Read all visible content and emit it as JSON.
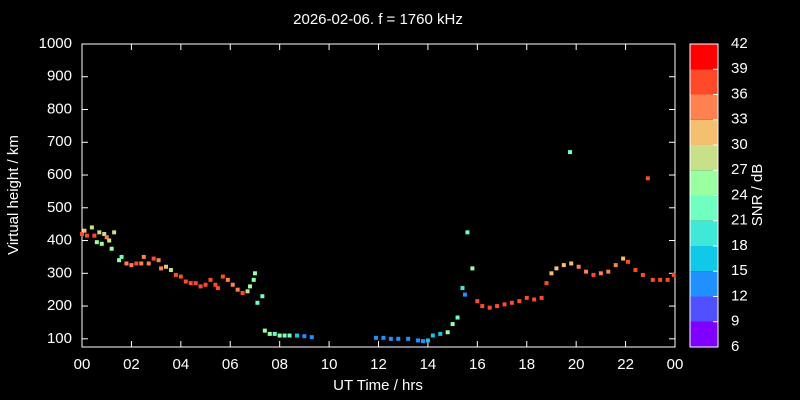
{
  "chart_data": {
    "type": "scatter",
    "title": "2026-02-06. f = 1760 kHz",
    "x_label": "UT Time / hrs",
    "y_label": "Virtual height / km",
    "xlim": [
      0,
      24
    ],
    "ylim": [
      75,
      1000
    ],
    "xticks": [
      {
        "value": 0,
        "label": "00"
      },
      {
        "value": 2,
        "label": "02"
      },
      {
        "value": 4,
        "label": "04"
      },
      {
        "value": 6,
        "label": "06"
      },
      {
        "value": 8,
        "label": "08"
      },
      10,
      12,
      14,
      16,
      18,
      20,
      22,
      {
        "value": 24,
        "label": "00"
      }
    ],
    "yticks": [
      100,
      200,
      300,
      400,
      500,
      600,
      700,
      800,
      900,
      1000
    ],
    "colorbar": {
      "label": "SNR / dB",
      "lim": [
        6,
        42
      ],
      "ticks": [
        6,
        9,
        12,
        15,
        18,
        21,
        24,
        27,
        30,
        33,
        36,
        39,
        42
      ],
      "colors": [
        "#8000ff",
        "#5050ff",
        "#2090ff",
        "#10c8e8",
        "#40e8d8",
        "#70ffc0",
        "#9affa0",
        "#c8e08a",
        "#f4c070",
        "#ff8050",
        "#ff4a2a",
        "#ff0000"
      ]
    },
    "series": [
      {
        "x": [
          0.0,
          0.1,
          0.2,
          0.4,
          0.5,
          0.6,
          0.7,
          0.8,
          0.9,
          1.0,
          1.1,
          1.2,
          1.3,
          1.5,
          1.6,
          1.8,
          2.0,
          2.2,
          2.4,
          2.5,
          2.7,
          2.9,
          3.1,
          3.2,
          3.4,
          3.6,
          3.8,
          4.0,
          4.2,
          4.4,
          4.6,
          4.8,
          5.0,
          5.2,
          5.4,
          5.5,
          5.7,
          5.9,
          6.1,
          6.3,
          6.5,
          6.7,
          6.8,
          6.95,
          7.0,
          7.1,
          7.3,
          7.4,
          7.6,
          7.8,
          8.0,
          8.2,
          8.4,
          8.7,
          9.0,
          9.3,
          11.9,
          12.2,
          12.5,
          12.8,
          13.2,
          13.6,
          13.8,
          14.0,
          14.2,
          14.5,
          14.8,
          15.0,
          15.2,
          15.4,
          15.5,
          15.6,
          15.8,
          16.0,
          16.2,
          16.5,
          16.8,
          17.1,
          17.4,
          17.7,
          18.0,
          18.3,
          18.6,
          18.8,
          19.0,
          19.2,
          19.5,
          19.8,
          19.75,
          20.1,
          20.4,
          20.7,
          21.0,
          21.3,
          21.6,
          21.9,
          22.1,
          22.4,
          22.7,
          22.9,
          23.1,
          23.4,
          23.7,
          23.95
        ],
        "y": [
          420,
          430,
          415,
          440,
          415,
          395,
          425,
          390,
          420,
          410,
          400,
          375,
          425,
          340,
          350,
          330,
          325,
          330,
          330,
          350,
          330,
          345,
          340,
          315,
          320,
          310,
          295,
          290,
          275,
          270,
          270,
          260,
          265,
          280,
          265,
          255,
          290,
          280,
          265,
          250,
          240,
          245,
          260,
          280,
          300,
          210,
          230,
          125,
          115,
          115,
          110,
          110,
          110,
          110,
          108,
          105,
          103,
          103,
          100,
          100,
          100,
          95,
          93,
          95,
          110,
          115,
          120,
          145,
          165,
          255,
          235,
          425,
          315,
          215,
          200,
          195,
          200,
          205,
          210,
          215,
          225,
          220,
          225,
          270,
          300,
          315,
          325,
          330,
          670,
          320,
          305,
          295,
          300,
          305,
          325,
          345,
          335,
          310,
          295,
          590,
          280,
          280,
          280,
          295
        ],
        "snr": [
          36,
          30,
          36,
          27,
          36,
          24,
          27,
          24,
          27,
          33,
          27,
          24,
          27,
          24,
          21,
          33,
          33,
          36,
          33,
          33,
          33,
          36,
          33,
          33,
          30,
          27,
          36,
          36,
          36,
          36,
          36,
          36,
          36,
          36,
          36,
          36,
          36,
          33,
          33,
          33,
          36,
          27,
          24,
          24,
          24,
          21,
          21,
          24,
          24,
          21,
          24,
          21,
          21,
          15,
          12,
          12,
          12,
          12,
          12,
          12,
          12,
          12,
          12,
          15,
          15,
          15,
          24,
          24,
          21,
          18,
          12,
          21,
          24,
          36,
          36,
          36,
          36,
          36,
          36,
          36,
          36,
          36,
          36,
          36,
          30,
          30,
          30,
          30,
          21,
          33,
          33,
          36,
          33,
          33,
          33,
          30,
          36,
          36,
          36,
          36,
          36,
          36,
          36,
          36
        ]
      }
    ]
  }
}
